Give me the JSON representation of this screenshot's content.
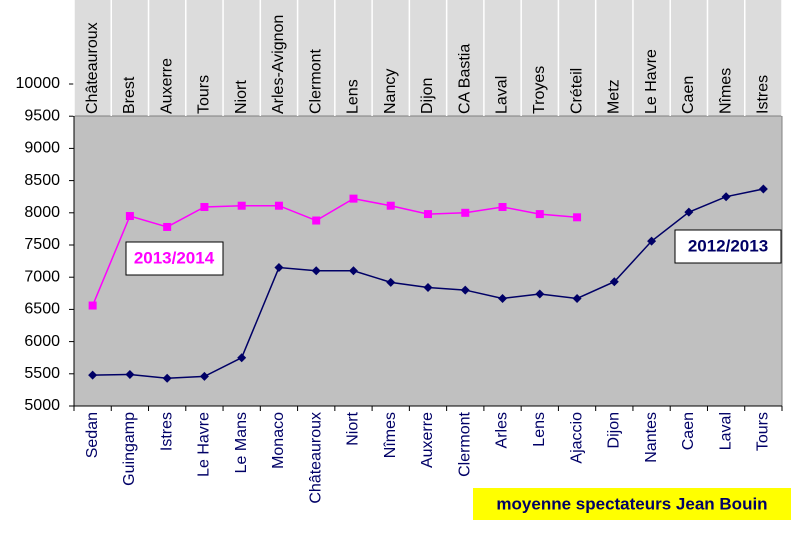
{
  "chart_data": {
    "type": "line",
    "title": "moyenne spectateurs Jean Bouin",
    "categories": [
      "Sedan",
      "Guingamp",
      "Istres",
      "Le Havre",
      "Le Mans",
      "Monaco",
      "Châteauroux",
      "Niort",
      "Nîmes",
      "Auxerre",
      "Clermont",
      "Arles",
      "Lens",
      "Ajaccio",
      "Dijon",
      "Nantes",
      "Caen",
      "Laval",
      "Tours"
    ],
    "top_categories": [
      "Châteauroux",
      "Brest",
      "Auxerre",
      "Tours",
      "Niort",
      "Arles-Avignon",
      "Clermont",
      "Lens",
      "Nancy",
      "Dijon",
      "CA Bastia",
      "Laval",
      "Troyes",
      "Créteil",
      "Metz",
      "Le Havre",
      "Caen",
      "Nîmes",
      "Istres"
    ],
    "series": [
      {
        "name": "2012/2013",
        "color": "#000066",
        "marker": "diamond",
        "values": [
          5480,
          5490,
          5430,
          5460,
          5750,
          7150,
          7100,
          7100,
          6920,
          6840,
          6800,
          6670,
          6740,
          6670,
          6930,
          7560,
          8010,
          8250,
          8370
        ]
      },
      {
        "name": "2013/2014",
        "color": "#ff00ff",
        "marker": "square",
        "values": [
          6560,
          7950,
          7780,
          8090,
          8110,
          8110,
          7880,
          8220,
          8110,
          7980,
          8000,
          8090,
          7980,
          7930,
          null,
          null,
          null,
          null,
          null
        ]
      }
    ],
    "ylim": [
      5000,
      10000
    ],
    "yticks": [
      5000,
      5500,
      6000,
      6500,
      7000,
      7500,
      8000,
      8500,
      9000,
      9500,
      10000
    ],
    "grid": false
  }
}
